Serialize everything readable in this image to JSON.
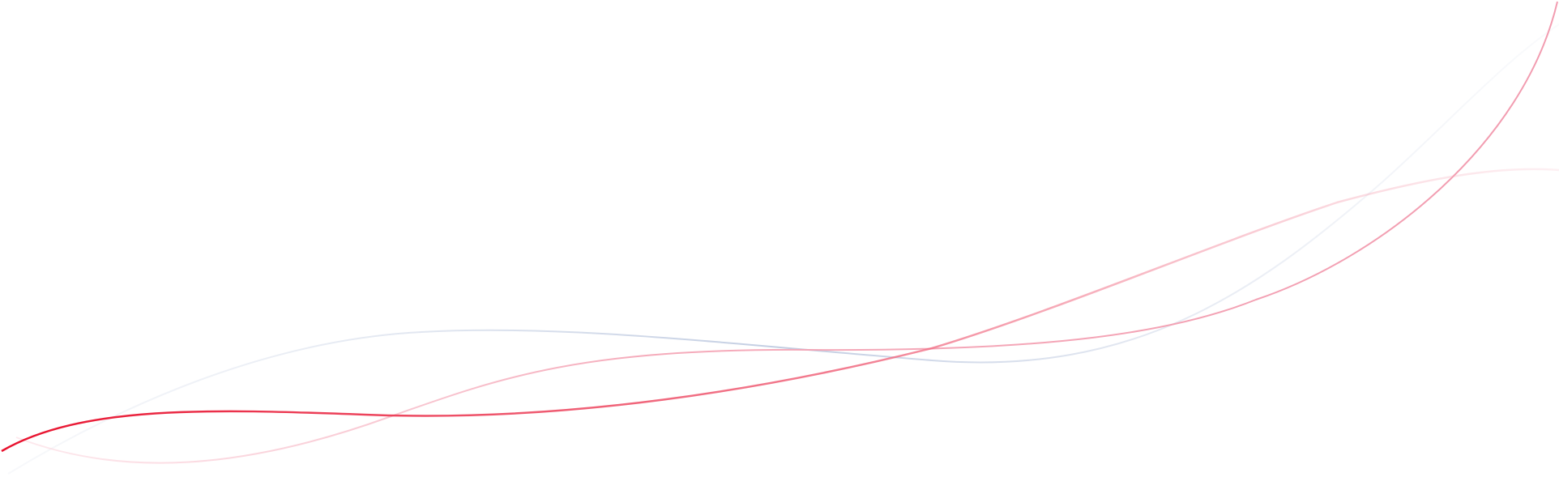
{
  "colors": {
    "red": "#e8112d",
    "pink": "#f4a3b4",
    "light_pink": "#fbd3dc",
    "blue_gray": "#c9d3e6",
    "background": "#ffffff"
  },
  "curves": [
    {
      "name": "red-wave",
      "color": "red"
    },
    {
      "name": "pink-wave",
      "color": "pink"
    },
    {
      "name": "blue-gray-wave",
      "color": "blue_gray"
    }
  ]
}
